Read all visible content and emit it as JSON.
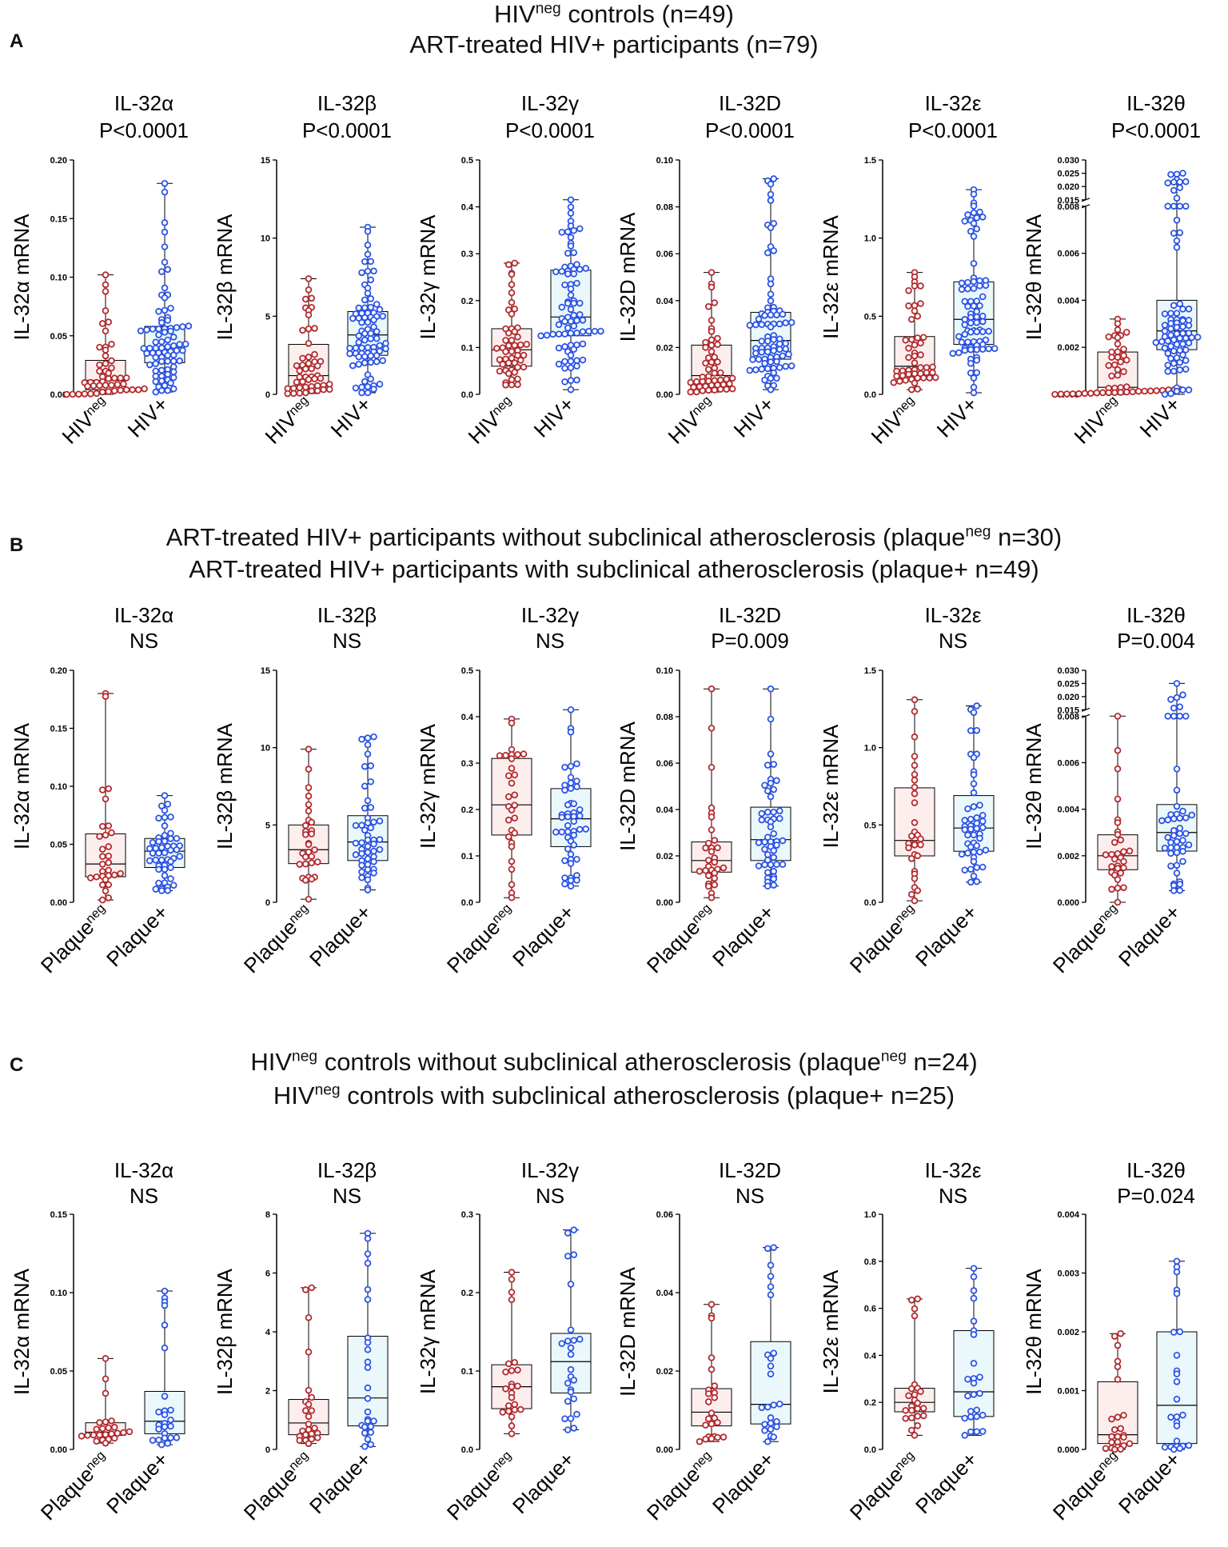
{
  "figure_colors": {
    "neg": "#b32a2e",
    "pos": "#2b54e6",
    "neg_box": "#fdeeee",
    "pos_box": "#eaf8fb"
  },
  "sections": [
    {
      "letter": "A",
      "header_lines": [
        {
          "main": "HIV",
          "sup": "neg",
          "rest": " controls (n=49)"
        },
        {
          "main": "ART-treated HIV+ participants (n=79)",
          "sup": "",
          "rest": ""
        }
      ],
      "x_labels": [
        {
          "main": "HIV",
          "sup": "neg"
        },
        {
          "main": "HIV+",
          "sup": ""
        }
      ]
    },
    {
      "letter": "B",
      "header_lines": [
        {
          "main": "ART-treated HIV+ participants without subclinical atherosclerosis (plaque",
          "sup": "neg",
          "rest": " n=30)"
        },
        {
          "main": "ART-treated HIV+ participants with subclinical atherosclerosis (plaque+ n=49)",
          "sup": "",
          "rest": ""
        }
      ],
      "x_labels": [
        {
          "main": "Plaque",
          "sup": "neg"
        },
        {
          "main": "Plaque+",
          "sup": ""
        }
      ]
    },
    {
      "letter": "C",
      "header_lines": [
        {
          "main": "HIV",
          "sup": "neg",
          "rest": "  controls without subclinical atherosclerosis (plaque"
        },
        {
          "main": "HIV",
          "sup": "neg",
          "rest": "  controls with subclinical atherosclerosis (plaque+ n=25)"
        }
      ],
      "header_line1_tail": {
        "sup": "neg",
        "rest": " n=24)"
      },
      "x_labels": [
        {
          "main": "Plaque",
          "sup": "neg"
        },
        {
          "main": "Plaque+",
          "sup": ""
        }
      ]
    }
  ],
  "chart_data": [
    {
      "type": "box",
      "section": "A",
      "title": "IL-32α",
      "pval": "P<0.0001",
      "ylabel": "IL-32α mRNA",
      "ylim": [
        0,
        0.2
      ],
      "ticks": [
        "0.00",
        "0.05",
        "0.10",
        "0.15",
        "0.20"
      ],
      "groups": [
        {
          "name": "HIVneg",
          "n": 49,
          "min": 0.0,
          "q1": 0.004,
          "median": 0.012,
          "q3": 0.029,
          "max": 0.102
        },
        {
          "name": "HIV+",
          "n": 79,
          "min": 0.002,
          "q1": 0.027,
          "median": 0.04,
          "q3": 0.058,
          "max": 0.18
        }
      ]
    },
    {
      "type": "box",
      "section": "A",
      "title": "IL-32β",
      "pval": "P<0.0001",
      "ylabel": "IL-32β mRNA",
      "ylim": [
        0,
        15
      ],
      "ticks": [
        "0",
        "5",
        "10",
        "15"
      ],
      "groups": [
        {
          "name": "HIVneg",
          "n": 49,
          "min": 0.05,
          "q1": 0.5,
          "median": 1.2,
          "q3": 3.2,
          "max": 7.4
        },
        {
          "name": "HIV+",
          "n": 79,
          "min": 0.1,
          "q1": 2.5,
          "median": 3.8,
          "q3": 5.3,
          "max": 10.7
        }
      ]
    },
    {
      "type": "box",
      "section": "A",
      "title": "IL-32γ",
      "pval": "P<0.0001",
      "ylabel": "IL-32γ mRNA",
      "ylim": [
        0,
        0.5
      ],
      "ticks": [
        "0.0",
        "0.1",
        "0.2",
        "0.3",
        "0.4",
        "0.5"
      ],
      "groups": [
        {
          "name": "HIVneg",
          "n": 49,
          "min": 0.02,
          "q1": 0.06,
          "median": 0.095,
          "q3": 0.14,
          "max": 0.28
        },
        {
          "name": "HIV+",
          "n": 79,
          "min": 0.01,
          "q1": 0.125,
          "median": 0.165,
          "q3": 0.265,
          "max": 0.415
        }
      ]
    },
    {
      "type": "box",
      "section": "A",
      "title": "IL-32D",
      "pval": "P<0.0001",
      "ylabel": "IL-32D mRNA",
      "ylim": [
        0,
        0.1
      ],
      "ticks": [
        "0.00",
        "0.02",
        "0.04",
        "0.06",
        "0.08",
        "0.10"
      ],
      "groups": [
        {
          "name": "HIVneg",
          "n": 49,
          "min": 0.001,
          "q1": 0.004,
          "median": 0.008,
          "q3": 0.021,
          "max": 0.052
        },
        {
          "name": "HIV+",
          "n": 79,
          "min": 0.002,
          "q1": 0.015,
          "median": 0.023,
          "q3": 0.035,
          "max": 0.092
        }
      ]
    },
    {
      "type": "box",
      "section": "A",
      "title": "IL-32ε",
      "pval": "P<0.0001",
      "ylabel": "IL-32ε mRNA",
      "ylim": [
        0,
        1.5
      ],
      "ticks": [
        "0.0",
        "0.5",
        "1.0",
        "1.5"
      ],
      "groups": [
        {
          "name": "HIVneg",
          "n": 49,
          "min": 0.03,
          "q1": 0.12,
          "median": 0.18,
          "q3": 0.37,
          "max": 0.78
        },
        {
          "name": "HIV+",
          "n": 79,
          "min": 0.01,
          "q1": 0.32,
          "median": 0.48,
          "q3": 0.72,
          "max": 1.31
        }
      ]
    },
    {
      "type": "box",
      "section": "A",
      "title": "IL-32θ",
      "pval": "P<0.0001",
      "ylabel": "IL-32θ mRNA",
      "broken": true,
      "ylim": [
        0,
        0.008
      ],
      "ticks": [
        "0.000",
        "0.002",
        "0.004",
        "0.006",
        "0.008"
      ],
      "upper_ylim": [
        0.015,
        0.03
      ],
      "upper_ticks": [
        "0.015",
        "0.020",
        "0.025",
        "0.030"
      ],
      "groups": [
        {
          "name": "HIVneg",
          "n": 49,
          "min": 0.0,
          "q1": 0.0001,
          "median": 0.0003,
          "q3": 0.0018,
          "max": 0.0032
        },
        {
          "name": "HIV+",
          "n": 79,
          "min": 0.0,
          "q1": 0.0019,
          "median": 0.0027,
          "q3": 0.004,
          "max": 0.025
        }
      ]
    },
    {
      "type": "box",
      "section": "B",
      "title": "IL-32α",
      "pval": "NS",
      "ylabel": "IL-32α mRNA",
      "ylim": [
        0,
        0.2
      ],
      "ticks": [
        "0.00",
        "0.05",
        "0.10",
        "0.15",
        "0.20"
      ],
      "groups": [
        {
          "name": "Plaqueneg",
          "n": 30,
          "min": 0.002,
          "q1": 0.022,
          "median": 0.033,
          "q3": 0.059,
          "max": 0.18
        },
        {
          "name": "Plaque+",
          "n": 49,
          "min": 0.01,
          "q1": 0.03,
          "median": 0.044,
          "q3": 0.055,
          "max": 0.092
        }
      ]
    },
    {
      "type": "box",
      "section": "B",
      "title": "IL-32β",
      "pval": "NS",
      "ylabel": "IL-32β mRNA",
      "ylim": [
        0,
        15
      ],
      "ticks": [
        "0",
        "5",
        "10",
        "15"
      ],
      "groups": [
        {
          "name": "Plaqueneg",
          "n": 30,
          "min": 0.2,
          "q1": 2.5,
          "median": 3.4,
          "q3": 5.0,
          "max": 9.9
        },
        {
          "name": "Plaque+",
          "n": 49,
          "min": 0.8,
          "q1": 2.7,
          "median": 3.9,
          "q3": 5.6,
          "max": 10.7
        }
      ]
    },
    {
      "type": "box",
      "section": "B",
      "title": "IL-32γ",
      "pval": "NS",
      "ylabel": "IL-32γ mRNA",
      "ylim": [
        0,
        0.5
      ],
      "ticks": [
        "0.0",
        "0.1",
        "0.2",
        "0.3",
        "0.4",
        "0.5"
      ],
      "groups": [
        {
          "name": "Plaqueneg",
          "n": 30,
          "min": 0.01,
          "q1": 0.145,
          "median": 0.21,
          "q3": 0.31,
          "max": 0.395
        },
        {
          "name": "Plaque+",
          "n": 49,
          "min": 0.035,
          "q1": 0.12,
          "median": 0.18,
          "q3": 0.245,
          "max": 0.415
        }
      ]
    },
    {
      "type": "box",
      "section": "B",
      "title": "IL-32D",
      "pval": "P=0.009",
      "ylabel": "IL-32D mRNA",
      "ylim": [
        0,
        0.1
      ],
      "ticks": [
        "0.00",
        "0.02",
        "0.04",
        "0.06",
        "0.08",
        "0.10"
      ],
      "groups": [
        {
          "name": "Plaqueneg",
          "n": 30,
          "min": 0.002,
          "q1": 0.013,
          "median": 0.018,
          "q3": 0.026,
          "max": 0.092
        },
        {
          "name": "Plaque+",
          "n": 49,
          "min": 0.007,
          "q1": 0.018,
          "median": 0.027,
          "q3": 0.041,
          "max": 0.092
        }
      ]
    },
    {
      "type": "box",
      "section": "B",
      "title": "IL-32ε",
      "pval": "NS",
      "ylabel": "IL-32ε mRNA",
      "ylim": [
        0,
        1.5
      ],
      "ticks": [
        "0.0",
        "0.5",
        "1.0",
        "1.5"
      ],
      "groups": [
        {
          "name": "Plaqueneg",
          "n": 30,
          "min": 0.01,
          "q1": 0.3,
          "median": 0.4,
          "q3": 0.74,
          "max": 1.31
        },
        {
          "name": "Plaque+",
          "n": 49,
          "min": 0.13,
          "q1": 0.33,
          "median": 0.48,
          "q3": 0.69,
          "max": 1.27
        }
      ]
    },
    {
      "type": "box",
      "section": "B",
      "title": "IL-32θ",
      "pval": "P=0.004",
      "ylabel": "IL-32θ mRNA",
      "broken": true,
      "ylim": [
        0,
        0.008
      ],
      "ticks": [
        "0.000",
        "0.002",
        "0.004",
        "0.006",
        "0.008"
      ],
      "upper_ylim": [
        0.015,
        0.03
      ],
      "upper_ticks": [
        "0.015",
        "0.020",
        "0.025",
        "0.030"
      ],
      "groups": [
        {
          "name": "Plaqueneg",
          "n": 30,
          "min": 0.0,
          "q1": 0.0014,
          "median": 0.002,
          "q3": 0.0029,
          "max": 0.0084
        },
        {
          "name": "Plaque+",
          "n": 49,
          "min": 0.0005,
          "q1": 0.0022,
          "median": 0.003,
          "q3": 0.0042,
          "max": 0.025
        }
      ]
    },
    {
      "type": "box",
      "section": "C",
      "title": "IL-32α",
      "pval": "NS",
      "ylabel": "IL-32α mRNA",
      "ylim": [
        0,
        0.15
      ],
      "ticks": [
        "0.00",
        "0.05",
        "0.10",
        "0.15"
      ],
      "groups": [
        {
          "name": "Plaqueneg",
          "n": 24,
          "min": 0.004,
          "q1": 0.009,
          "median": 0.011,
          "q3": 0.017,
          "max": 0.058
        },
        {
          "name": "Plaque+",
          "n": 25,
          "min": 0.003,
          "q1": 0.01,
          "median": 0.018,
          "q3": 0.037,
          "max": 0.101
        }
      ]
    },
    {
      "type": "box",
      "section": "C",
      "title": "IL-32β",
      "pval": "NS",
      "ylabel": "IL-32β mRNA",
      "ylim": [
        0,
        8
      ],
      "ticks": [
        "0",
        "2",
        "4",
        "6",
        "8"
      ],
      "groups": [
        {
          "name": "Plaqueneg",
          "n": 24,
          "min": 0.2,
          "q1": 0.5,
          "median": 0.9,
          "q3": 1.7,
          "max": 5.5
        },
        {
          "name": "Plaque+",
          "n": 25,
          "min": 0.1,
          "q1": 0.8,
          "median": 1.75,
          "q3": 3.85,
          "max": 7.35
        }
      ]
    },
    {
      "type": "box",
      "section": "C",
      "title": "IL-32γ",
      "pval": "NS",
      "ylabel": "IL-32γ mRNA",
      "ylim": [
        0,
        0.3
      ],
      "ticks": [
        "0.0",
        "0.1",
        "0.2",
        "0.3"
      ],
      "groups": [
        {
          "name": "Plaqueneg",
          "n": 24,
          "min": 0.02,
          "q1": 0.052,
          "median": 0.08,
          "q3": 0.108,
          "max": 0.226
        },
        {
          "name": "Plaque+",
          "n": 25,
          "min": 0.025,
          "q1": 0.072,
          "median": 0.112,
          "q3": 0.148,
          "max": 0.28
        }
      ]
    },
    {
      "type": "box",
      "section": "C",
      "title": "IL-32D",
      "pval": "NS",
      "ylabel": "IL-32D mRNA",
      "ylim": [
        0,
        0.06
      ],
      "ticks": [
        "0.00",
        "0.02",
        "0.04",
        "0.06"
      ],
      "groups": [
        {
          "name": "Plaqueneg",
          "n": 24,
          "min": 0.002,
          "q1": 0.006,
          "median": 0.0095,
          "q3": 0.0155,
          "max": 0.037
        },
        {
          "name": "Plaque+",
          "n": 25,
          "min": 0.002,
          "q1": 0.0065,
          "median": 0.0115,
          "q3": 0.0275,
          "max": 0.0515
        }
      ]
    },
    {
      "type": "box",
      "section": "C",
      "title": "IL-32ε",
      "pval": "NS",
      "ylabel": "IL-32ε mRNA",
      "ylim": [
        0,
        1.0
      ],
      "ticks": [
        "0.0",
        "0.2",
        "0.4",
        "0.6",
        "0.8",
        "1.0"
      ],
      "groups": [
        {
          "name": "Plaqueneg",
          "n": 24,
          "min": 0.06,
          "q1": 0.16,
          "median": 0.2,
          "q3": 0.26,
          "max": 0.64
        },
        {
          "name": "Plaque+",
          "n": 25,
          "min": 0.06,
          "q1": 0.14,
          "median": 0.245,
          "q3": 0.505,
          "max": 0.77
        }
      ]
    },
    {
      "type": "box",
      "section": "C",
      "title": "IL-32θ",
      "pval": "P=0.024",
      "ylabel": "IL-32θ mRNA",
      "ylim": [
        0,
        0.004
      ],
      "ticks": [
        "0.000",
        "0.001",
        "0.002",
        "0.003",
        "0.004"
      ],
      "groups": [
        {
          "name": "Plaqueneg",
          "n": 24,
          "min": 0.0,
          "q1": 0.0001,
          "median": 0.00025,
          "q3": 0.00115,
          "max": 0.00197
        },
        {
          "name": "Plaque+",
          "n": 25,
          "min": 0.0,
          "q1": 0.0001,
          "median": 0.00075,
          "q3": 0.002,
          "max": 0.0032
        }
      ]
    }
  ]
}
